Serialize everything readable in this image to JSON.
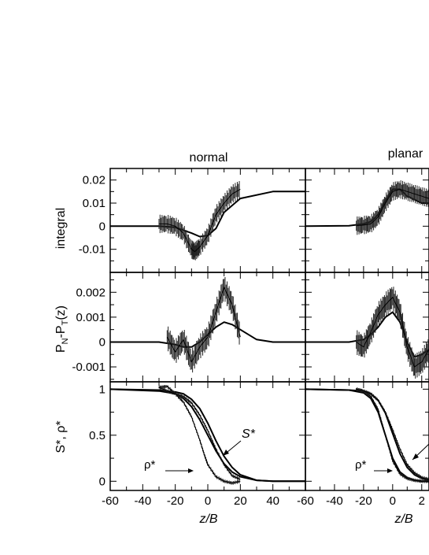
{
  "figure": {
    "column_titles": [
      "normal",
      "planar"
    ],
    "x_tick_labels_left": [
      "-60",
      "-40",
      "-20",
      "0",
      "20",
      "40"
    ],
    "x_tick_labels_right": [
      "-60",
      "-40",
      "-20",
      "0",
      "2"
    ],
    "xlabel": "z/B",
    "row_labels": [
      "integral",
      "P_N-P_T(z)",
      "S*, ρ*"
    ],
    "annotations": {
      "s_star": "S*",
      "rho_star": "ρ*"
    }
  },
  "chart_data": [
    {
      "type": "line",
      "panel": "normal-integral",
      "title": "normal",
      "xlabel": "",
      "ylabel": "integral",
      "xlim": [
        -60,
        60
      ],
      "ylim": [
        -0.02,
        0.025
      ],
      "y_ticks": [
        "0.02",
        "0.01",
        "0",
        "-0.01"
      ],
      "series": [
        {
          "x": [
            -60,
            -30,
            -20,
            -10,
            -5,
            0,
            5,
            10,
            20,
            40,
            60
          ],
          "values": [
            0,
            0,
            -0.0005,
            -0.003,
            -0.0045,
            -0.004,
            -0.001,
            0.006,
            0.012,
            0.015,
            0.015
          ]
        },
        {
          "x": [
            -30,
            -25,
            -20,
            -15,
            -10,
            -8,
            -5,
            0,
            5,
            10,
            15,
            20
          ],
          "values": [
            0.001,
            0.001,
            0,
            -0.003,
            -0.01,
            -0.011,
            -0.009,
            -0.004,
            0.005,
            0.01,
            0.014,
            0.016
          ],
          "error_half_width": 0.004
        }
      ]
    },
    {
      "type": "line",
      "panel": "planar-integral",
      "title": "planar",
      "ylabel": "",
      "xlim": [
        -60,
        25
      ],
      "ylim": [
        -0.02,
        0.025
      ],
      "series": [
        {
          "x": [
            -60,
            -30,
            -20,
            -15,
            -10,
            -5,
            0,
            5,
            10,
            20,
            25
          ],
          "values": [
            0,
            0.0002,
            0.001,
            0.002,
            0.005,
            0.011,
            0.016,
            0.016,
            0.013,
            0.01,
            0.01
          ]
        },
        {
          "x": [
            -25,
            -20,
            -15,
            -10,
            -5,
            0,
            5,
            10,
            15,
            20,
            25
          ],
          "values": [
            0.0002,
            0.0005,
            0.001,
            0.004,
            0.01,
            0.015,
            0.016,
            0.015,
            0.014,
            0.013,
            0.012
          ],
          "error_half_width": 0.004
        }
      ]
    },
    {
      "type": "line",
      "panel": "normal-pressure",
      "ylabel": "P_N-P_T(z)",
      "xlim": [
        -60,
        60
      ],
      "ylim": [
        -0.0016,
        0.0028
      ],
      "y_ticks": [
        "0.002",
        "0.001",
        "0",
        "-0.001"
      ],
      "series": [
        {
          "x": [
            -60,
            -30,
            -20,
            -15,
            -10,
            -5,
            0,
            5,
            10,
            15,
            20,
            30,
            40,
            60
          ],
          "values": [
            0,
            0,
            -0.0001,
            -0.0002,
            -0.0002,
            0,
            0.0003,
            0.0006,
            0.0008,
            0.0007,
            0.0005,
            0.0001,
            0,
            0
          ]
        },
        {
          "x": [
            -25,
            -20,
            -15,
            -10,
            -5,
            0,
            5,
            10,
            15,
            20
          ],
          "values": [
            0.0002,
            -0.0004,
            0.0001,
            -0.0008,
            -0.0002,
            0.0002,
            0.0012,
            0.0022,
            0.0015,
            0.0002
          ],
          "error_half_width": 0.0005
        }
      ]
    },
    {
      "type": "line",
      "panel": "planar-pressure",
      "ylabel": "",
      "xlim": [
        -60,
        25
      ],
      "ylim": [
        -0.0016,
        0.0028
      ],
      "series": [
        {
          "x": [
            -60,
            -30,
            -20,
            -15,
            -10,
            -5,
            0,
            5,
            10,
            15,
            20,
            25
          ],
          "values": [
            0,
            0,
            0.0001,
            0.0003,
            0.0006,
            0.001,
            0.0012,
            0.0008,
            0,
            -0.0006,
            -0.0005,
            -0.0003
          ]
        },
        {
          "x": [
            -25,
            -20,
            -15,
            -10,
            -5,
            0,
            5,
            10,
            15,
            20,
            25
          ],
          "values": [
            0,
            -0.0002,
            0.0004,
            0.0011,
            0.0015,
            0.0018,
            0.0012,
            -0.0002,
            -0.001,
            -0.0008,
            -0.0003
          ],
          "error_half_width": 0.0005
        }
      ]
    },
    {
      "type": "line",
      "panel": "normal-profiles",
      "ylabel": "S*, ρ*",
      "xlim": [
        -60,
        60
      ],
      "ylim": [
        -0.1,
        1.08
      ],
      "y_ticks": [
        "1",
        "0.5",
        "0"
      ],
      "series": [
        {
          "x": [
            -60,
            -30,
            -20,
            -15,
            -10,
            -5,
            0,
            5,
            10,
            15,
            20,
            30,
            40,
            60
          ],
          "values": [
            1,
            0.98,
            0.95,
            0.9,
            0.81,
            0.67,
            0.5,
            0.33,
            0.19,
            0.1,
            0.05,
            0.01,
            0,
            0
          ]
        },
        {
          "x": [
            -60,
            -30,
            -20,
            -15,
            -10,
            -5,
            0,
            5,
            10,
            15,
            20,
            30,
            40,
            60
          ],
          "values": [
            1,
            0.99,
            0.97,
            0.95,
            0.89,
            0.79,
            0.63,
            0.44,
            0.27,
            0.15,
            0.07,
            0.01,
            0,
            0
          ]
        },
        {
          "x": [
            -30,
            -25,
            -20,
            -15,
            -10,
            -5,
            -2,
            0,
            5,
            10,
            15,
            20
          ],
          "values": [
            1.02,
            1.03,
            0.95,
            0.86,
            0.7,
            0.45,
            0.28,
            0.18,
            0.05,
            0,
            -0.02,
            0
          ],
          "error_half_width": 0.02
        },
        {
          "x": [
            -30,
            -25,
            -20,
            -15,
            -10,
            -5,
            0,
            5,
            10,
            15,
            20
          ],
          "values": [
            1.02,
            0.98,
            0.95,
            0.92,
            0.85,
            0.72,
            0.55,
            0.35,
            0.18,
            0.06,
            0.02
          ],
          "error_half_width": 0.02
        }
      ]
    },
    {
      "type": "line",
      "panel": "planar-profiles",
      "ylabel": "",
      "xlim": [
        -60,
        25
      ],
      "ylim": [
        -0.1,
        1.08
      ],
      "series": [
        {
          "x": [
            -60,
            -30,
            -20,
            -15,
            -10,
            -5,
            0,
            5,
            10,
            15,
            20,
            25
          ],
          "values": [
            1,
            0.99,
            0.96,
            0.9,
            0.75,
            0.5,
            0.25,
            0.1,
            0.04,
            0.01,
            0,
            0
          ]
        },
        {
          "x": [
            -60,
            -30,
            -20,
            -15,
            -10,
            -5,
            0,
            5,
            10,
            15,
            20,
            25
          ],
          "values": [
            1,
            0.99,
            0.98,
            0.95,
            0.88,
            0.74,
            0.52,
            0.3,
            0.15,
            0.07,
            0.03,
            0.01
          ]
        },
        {
          "x": [
            -25,
            -20,
            -15,
            -10,
            -5,
            0,
            5,
            10,
            15,
            20,
            25
          ],
          "values": [
            1,
            0.98,
            0.92,
            0.78,
            0.5,
            0.22,
            0.08,
            0.03,
            0.01,
            0,
            0
          ],
          "error_half_width": 0.02
        },
        {
          "x": [
            -25,
            -20,
            -15,
            -10,
            -5,
            0,
            5,
            10,
            15,
            20,
            25
          ],
          "values": [
            1,
            0.98,
            0.95,
            0.88,
            0.75,
            0.56,
            0.35,
            0.18,
            0.09,
            0.04,
            0.02
          ],
          "error_half_width": 0.02
        }
      ]
    }
  ]
}
